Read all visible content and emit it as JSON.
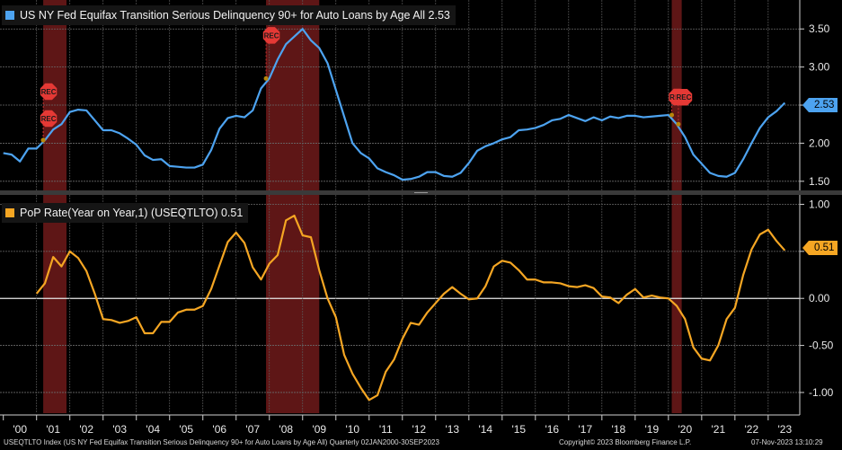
{
  "colors": {
    "top_series": "#4da3f0",
    "bottom_series": "#f5a623",
    "recession": "#6e1a1a",
    "marker": "#e53935",
    "background": "#000000"
  },
  "chart_data": [
    {
      "type": "line",
      "title": "US NY Fed Equifax Transition Serious Delinquency 90+ for Auto Loans by Age All 2.53",
      "series_name": "US NY Fed Equifax Transition Serious Delinquency 90+ for Auto Loans by Age All",
      "last_value_label": "2.53",
      "x_unit": "year",
      "x": [
        2000.0,
        2000.25,
        2000.5,
        2000.75,
        2001.0,
        2001.25,
        2001.5,
        2001.75,
        2002.0,
        2002.25,
        2002.5,
        2002.75,
        2003.0,
        2003.25,
        2003.5,
        2003.75,
        2004.0,
        2004.25,
        2004.5,
        2004.75,
        2005.0,
        2005.25,
        2005.5,
        2005.75,
        2006.0,
        2006.25,
        2006.5,
        2006.75,
        2007.0,
        2007.25,
        2007.5,
        2007.75,
        2008.0,
        2008.25,
        2008.5,
        2008.75,
        2009.0,
        2009.25,
        2009.5,
        2009.75,
        2010.0,
        2010.25,
        2010.5,
        2010.75,
        2011.0,
        2011.25,
        2011.5,
        2011.75,
        2012.0,
        2012.25,
        2012.5,
        2012.75,
        2013.0,
        2013.25,
        2013.5,
        2013.75,
        2014.0,
        2014.25,
        2014.5,
        2014.75,
        2015.0,
        2015.25,
        2015.5,
        2015.75,
        2016.0,
        2016.25,
        2016.5,
        2016.75,
        2017.0,
        2017.25,
        2017.5,
        2017.75,
        2018.0,
        2018.25,
        2018.5,
        2018.75,
        2019.0,
        2019.25,
        2019.5,
        2019.75,
        2020.0,
        2020.25,
        2020.5,
        2020.75,
        2021.0,
        2021.25,
        2021.5,
        2021.75,
        2022.0,
        2022.25,
        2022.5,
        2022.75,
        2023.0,
        2023.25,
        2023.5
      ],
      "values": [
        1.87,
        1.85,
        1.76,
        1.93,
        1.93,
        2.04,
        2.18,
        2.25,
        2.41,
        2.44,
        2.43,
        2.3,
        2.17,
        2.17,
        2.13,
        2.06,
        1.98,
        1.84,
        1.78,
        1.79,
        1.7,
        1.69,
        1.68,
        1.68,
        1.72,
        1.91,
        2.19,
        2.33,
        2.36,
        2.34,
        2.43,
        2.72,
        2.85,
        3.1,
        3.3,
        3.4,
        3.5,
        3.35,
        3.25,
        3.05,
        2.7,
        2.35,
        2.0,
        1.87,
        1.8,
        1.67,
        1.62,
        1.58,
        1.52,
        1.53,
        1.56,
        1.62,
        1.62,
        1.57,
        1.56,
        1.61,
        1.74,
        1.9,
        1.96,
        2.0,
        2.05,
        2.08,
        2.17,
        2.18,
        2.2,
        2.24,
        2.3,
        2.32,
        2.37,
        2.33,
        2.29,
        2.34,
        2.3,
        2.35,
        2.33,
        2.36,
        2.36,
        2.34,
        2.35,
        2.36,
        2.37,
        2.25,
        2.08,
        1.85,
        1.73,
        1.61,
        1.57,
        1.56,
        1.61,
        1.79,
        2.0,
        2.2,
        2.34,
        2.42,
        2.53
      ],
      "y_ticks": [
        "3.50",
        "3.00",
        "2.50",
        "2.00",
        "1.50"
      ],
      "ylim": [
        1.38,
        3.88
      ]
    },
    {
      "type": "line",
      "title": "PoP Rate(Year on Year,1) (USEQTLTO) 0.51",
      "series_name": "PoP Rate(Year on Year,1) (USEQTLTO)",
      "last_value_label": "0.51",
      "x_unit": "year",
      "x": [
        2001.0,
        2001.25,
        2001.5,
        2001.75,
        2002.0,
        2002.25,
        2002.5,
        2002.75,
        2003.0,
        2003.25,
        2003.5,
        2003.75,
        2004.0,
        2004.25,
        2004.5,
        2004.75,
        2005.0,
        2005.25,
        2005.5,
        2005.75,
        2006.0,
        2006.25,
        2006.5,
        2006.75,
        2007.0,
        2007.25,
        2007.5,
        2007.75,
        2008.0,
        2008.25,
        2008.5,
        2008.75,
        2009.0,
        2009.25,
        2009.5,
        2009.75,
        2010.0,
        2010.25,
        2010.5,
        2010.75,
        2011.0,
        2011.25,
        2011.5,
        2011.75,
        2012.0,
        2012.25,
        2012.5,
        2012.75,
        2013.0,
        2013.25,
        2013.5,
        2013.75,
        2014.0,
        2014.25,
        2014.5,
        2014.75,
        2015.0,
        2015.25,
        2015.5,
        2015.75,
        2016.0,
        2016.25,
        2016.5,
        2016.75,
        2017.0,
        2017.25,
        2017.5,
        2017.75,
        2018.0,
        2018.25,
        2018.5,
        2018.75,
        2019.0,
        2019.25,
        2019.5,
        2019.75,
        2020.0,
        2020.25,
        2020.5,
        2020.75,
        2021.0,
        2021.25,
        2021.5,
        2021.75,
        2022.0,
        2022.25,
        2022.5,
        2022.75,
        2023.0,
        2023.25,
        2023.5
      ],
      "values": [
        0.05,
        0.16,
        0.44,
        0.34,
        0.5,
        0.43,
        0.29,
        0.05,
        -0.22,
        -0.23,
        -0.26,
        -0.24,
        -0.2,
        -0.37,
        -0.37,
        -0.25,
        -0.25,
        -0.15,
        -0.12,
        -0.12,
        -0.08,
        0.1,
        0.35,
        0.6,
        0.7,
        0.59,
        0.33,
        0.2,
        0.37,
        0.46,
        0.83,
        0.88,
        0.67,
        0.65,
        0.3,
        0.0,
        -0.2,
        -0.6,
        -0.8,
        -0.95,
        -1.08,
        -1.03,
        -0.78,
        -0.65,
        -0.43,
        -0.26,
        -0.28,
        -0.15,
        -0.05,
        0.05,
        0.12,
        0.05,
        -0.01,
        0.0,
        0.13,
        0.34,
        0.4,
        0.38,
        0.3,
        0.2,
        0.2,
        0.17,
        0.17,
        0.16,
        0.13,
        0.12,
        0.14,
        0.11,
        0.02,
        0.01,
        -0.05,
        0.04,
        0.1,
        0.01,
        0.03,
        0.01,
        0.0,
        -0.08,
        -0.22,
        -0.52,
        -0.64,
        -0.66,
        -0.5,
        -0.22,
        -0.1,
        0.25,
        0.52,
        0.68,
        0.73,
        0.61,
        0.51
      ],
      "y_ticks": [
        "1.00",
        "0.50",
        "0.00",
        "-0.50",
        "-1.00"
      ],
      "ylim": [
        -1.22,
        1.1
      ]
    }
  ],
  "recessions": [
    [
      2001.2,
      2001.9
    ],
    [
      2007.9,
      2009.5
    ],
    [
      2020.1,
      2020.4
    ]
  ],
  "rec_marker_text": "REC",
  "x_axis": {
    "xlim": [
      1999.9,
      2023.95
    ],
    "labels": [
      {
        "year": 2000,
        "text": "'00"
      },
      {
        "year": 2001,
        "text": "'01"
      },
      {
        "year": 2002,
        "text": "'02"
      },
      {
        "year": 2003,
        "text": "'03"
      },
      {
        "year": 2004,
        "text": "'04"
      },
      {
        "year": 2005,
        "text": "'05"
      },
      {
        "year": 2006,
        "text": "'06"
      },
      {
        "year": 2007,
        "text": "'07"
      },
      {
        "year": 2008,
        "text": "'08"
      },
      {
        "year": 2009,
        "text": "'09"
      },
      {
        "year": 2010,
        "text": "'10"
      },
      {
        "year": 2011,
        "text": "'11"
      },
      {
        "year": 2012,
        "text": "'12"
      },
      {
        "year": 2013,
        "text": "'13"
      },
      {
        "year": 2014,
        "text": "'14"
      },
      {
        "year": 2015,
        "text": "'15"
      },
      {
        "year": 2016,
        "text": "'16"
      },
      {
        "year": 2017,
        "text": "'17"
      },
      {
        "year": 2018,
        "text": "'18"
      },
      {
        "year": 2019,
        "text": "'19"
      },
      {
        "year": 2020,
        "text": "'20"
      },
      {
        "year": 2021,
        "text": "'21"
      },
      {
        "year": 2022,
        "text": "'22"
      },
      {
        "year": 2023,
        "text": "'23"
      }
    ]
  },
  "footer": {
    "index_text": "USEQTLTO Index (US NY Fed Equifax Transition Serious Delinquency 90+ for Auto Loans by Age All)  Quarterly 02JAN2000-30SEP2023",
    "copyright": "Copyright© 2023 Bloomberg Finance L.P.",
    "timestamp": "07-Nov-2023 13:10:29"
  }
}
